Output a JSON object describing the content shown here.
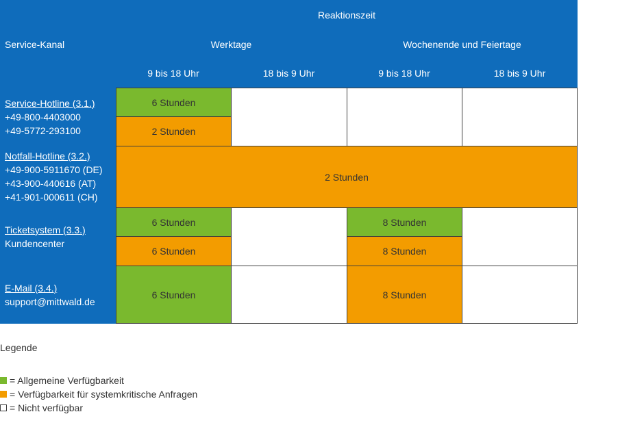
{
  "header": {
    "top": "Reaktionszeit",
    "channel_col": "Service-Kanal",
    "group_workdays": "Werktage",
    "group_weekend": "Wochenende und Feiertage",
    "col_1": "9 bis 18 Uhr",
    "col_2": "18 bis 9 Uhr",
    "col_3": "9 bis 18 Uhr",
    "col_4": "18 bis 9 Uhr"
  },
  "rows": {
    "hotline": {
      "link": "Service-Hotline (3.1.)",
      "line1": "+49-800-4403000",
      "line2": "+49-5772-293100"
    },
    "notfall": {
      "link": "Notfall-Hotline (3.2.)",
      "line1": "+49-900-5911670 (DE)",
      "line2": "+43-900-440616 (AT)",
      "line3": "+41-901-000611 (CH)"
    },
    "ticket": {
      "link": "Ticketsystem (3.3.)",
      "line1": "Kundencenter"
    },
    "email": {
      "link": "E-Mail (3.4.)",
      "line1": "support@mittwald.de"
    }
  },
  "cells": {
    "hotline_general": "6 Stunden",
    "hotline_critical": "2 Stunden",
    "notfall_all": "2 Stunden",
    "ticket_wd_general": "6 Stunden",
    "ticket_wd_critical": "6 Stunden",
    "ticket_we_general": "8 Stunden",
    "ticket_we_critical": "8 Stunden",
    "email_wd": "6 Stunden",
    "email_we": "8 Stunden"
  },
  "legend": {
    "title": "Legende",
    "general": "= Allgemeine Verfügbarkeit",
    "critical": "= Verfügbarkeit für systemkritische Anfragen",
    "none": "= Nicht verfügbar"
  },
  "colors": {
    "header_blue": "#0f6cbb",
    "general_green": "#7ab92e",
    "critical_orange": "#f39c00",
    "unavailable_white": "#ffffff"
  }
}
